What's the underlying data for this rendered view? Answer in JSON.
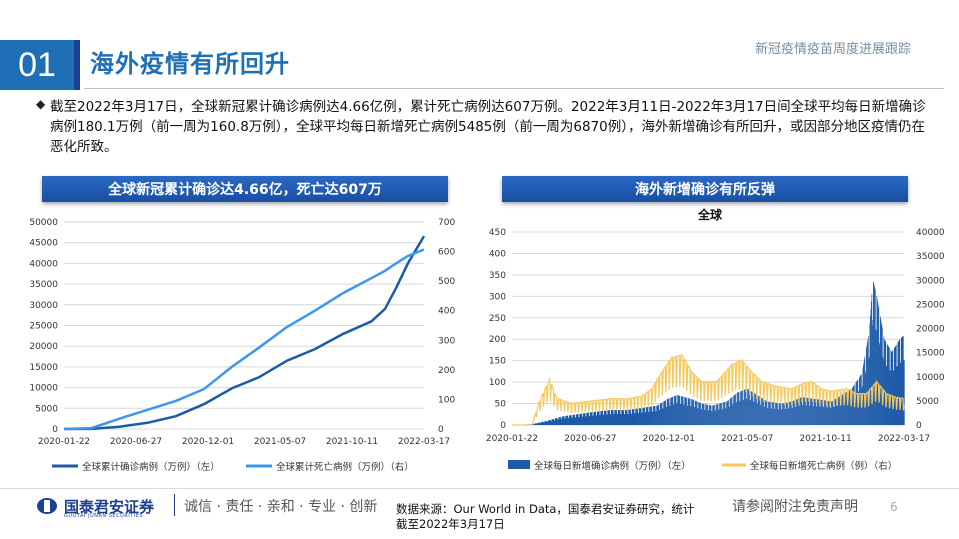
{
  "header": {
    "section_number": "01",
    "title": "海外疫情有所回升",
    "subtitle": "新冠疫情疫苗周度进展跟踪"
  },
  "summary": "截至2022年3月17日，全球新冠累计确诊病例达4.66亿例，累计死亡病例达607万例。2022年3月11日-2022年3月17日间全球平均每日新增确诊病例180.1万例（前一周为160.8万例），全球平均每日新增死亡病例5485例（前一周为6870例），海外新增确诊有所回升，或因部分地区疫情仍在恶化所致。",
  "left_chart_title": "全球新冠累计确诊达4.66亿，死亡达607万",
  "right_chart_title": "海外新增确诊有所反弹",
  "colors": {
    "accent": "#1f6fb6",
    "dark_blue": "#1d5aa8",
    "light_blue": "#3d97ee",
    "yellow": "#f7c85a",
    "bar_blue": "#1d5aa8"
  },
  "chart_data": [
    {
      "type": "line",
      "title": "",
      "x": [
        "2020-01-22",
        "2020-03-22",
        "2020-05-22",
        "2020-07-22",
        "2020-09-22",
        "2020-11-22",
        "2021-01-22",
        "2021-03-22",
        "2021-05-22",
        "2021-07-22",
        "2021-09-22",
        "2021-11-22",
        "2021-12-22",
        "2022-01-15",
        "2022-02-10",
        "2022-03-17"
      ],
      "x_ticks": [
        "2020-01-22",
        "2020-06-27",
        "2020-12-01",
        "2021-05-07",
        "2021-10-11",
        "2022-03-17"
      ],
      "series": [
        {
          "name": "全球累计确诊病例（万例）（左）",
          "axis": "left",
          "values": [
            0.1,
            30,
            550,
            1500,
            3100,
            6000,
            9800,
            12500,
            16500,
            19300,
            23000,
            26000,
            29000,
            34000,
            40000,
            46600
          ]
        },
        {
          "name": "全球累计死亡病例（万例）（右）",
          "axis": "right",
          "values": [
            0,
            3,
            35,
            65,
            95,
            135,
            210,
            275,
            345,
            400,
            460,
            510,
            535,
            560,
            585,
            607
          ]
        }
      ],
      "y_left_ticks": [
        "0",
        "5000",
        "10000",
        "15000",
        "20000",
        "25000",
        "30000",
        "35000",
        "40000",
        "45000",
        "50000"
      ],
      "y_right_ticks": [
        "0",
        "100",
        "200",
        "300",
        "400",
        "500",
        "600",
        "700"
      ],
      "ylim_left": [
        0,
        50000
      ],
      "ylim_right": [
        0,
        700
      ],
      "legend": "bottom",
      "grid": true
    },
    {
      "type": "bar",
      "title": "全球",
      "x_ticks": [
        "2020-01-22",
        "2020-06-27",
        "2020-12-01",
        "2021-05-07",
        "2021-10-11",
        "2022-03-17"
      ],
      "x_range": [
        "2020-01-22",
        "2022-03-17"
      ],
      "series": [
        {
          "name": "全球每日新增确诊病例（万例）（左）",
          "axis": "left",
          "kind": "bar",
          "keys": [
            [
              0,
              0
            ],
            [
              40,
              2
            ],
            [
              70,
              10
            ],
            [
              100,
              20
            ],
            [
              130,
              25
            ],
            [
              160,
              30
            ],
            [
              200,
              35
            ],
            [
              230,
              35
            ],
            [
              260,
              40
            ],
            [
              290,
              45
            ],
            [
              310,
              60
            ],
            [
              330,
              70
            ],
            [
              345,
              65
            ],
            [
              360,
              60
            ],
            [
              380,
              50
            ],
            [
              400,
              45
            ],
            [
              430,
              55
            ],
            [
              450,
              75
            ],
            [
              470,
              85
            ],
            [
              490,
              70
            ],
            [
              510,
              55
            ],
            [
              540,
              50
            ],
            [
              560,
              55
            ],
            [
              580,
              65
            ],
            [
              610,
              60
            ],
            [
              640,
              55
            ],
            [
              660,
              70
            ],
            [
              680,
              85
            ],
            [
              700,
              120
            ],
            [
              715,
              220
            ],
            [
              722,
              340
            ],
            [
              730,
              300
            ],
            [
              745,
              200
            ],
            [
              760,
              170
            ],
            [
              776,
              200
            ],
            [
              785,
              210
            ]
          ]
        },
        {
          "name": "全球每日新增死亡病例（例）（右）",
          "axis": "right",
          "kind": "line",
          "keys": [
            [
              0,
              0
            ],
            [
              40,
              0
            ],
            [
              55,
              5000
            ],
            [
              75,
              9500
            ],
            [
              90,
              5500
            ],
            [
              120,
              4500
            ],
            [
              160,
              5000
            ],
            [
              200,
              5500
            ],
            [
              230,
              5400
            ],
            [
              260,
              6000
            ],
            [
              280,
              7500
            ],
            [
              300,
              11000
            ],
            [
              320,
              14000
            ],
            [
              340,
              14500
            ],
            [
              360,
              11000
            ],
            [
              380,
              9000
            ],
            [
              410,
              9000
            ],
            [
              440,
              12500
            ],
            [
              460,
              13500
            ],
            [
              480,
              11000
            ],
            [
              500,
              9000
            ],
            [
              530,
              8000
            ],
            [
              560,
              7500
            ],
            [
              580,
              8500
            ],
            [
              600,
              9000
            ],
            [
              620,
              7500
            ],
            [
              640,
              7000
            ],
            [
              670,
              7500
            ],
            [
              690,
              6500
            ],
            [
              710,
              6500
            ],
            [
              730,
              9000
            ],
            [
              750,
              6500
            ],
            [
              770,
              5700
            ],
            [
              785,
              5500
            ]
          ]
        }
      ],
      "y_left_ticks": [
        "0",
        "50",
        "100",
        "150",
        "200",
        "250",
        "300",
        "350",
        "400",
        "450"
      ],
      "y_right_ticks": [
        "0",
        "5000",
        "10000",
        "15000",
        "20000",
        "25000",
        "30000",
        "35000",
        "40000"
      ],
      "ylim_left": [
        0,
        450
      ],
      "ylim_right": [
        0,
        40000
      ],
      "legend": "bottom",
      "grid": true
    }
  ],
  "footer": {
    "company": "国泰君安证券",
    "company_en": "GUOTAI JUNAN SECURITIES",
    "slogan": "诚信 · 责任 · 亲和 · 专业 · 创新",
    "source": "数据来源：Our World in Data，国泰君安证券研究，统计截至2022年3月17日",
    "disclaimer": "请参阅附注免责声明",
    "page": "6"
  }
}
